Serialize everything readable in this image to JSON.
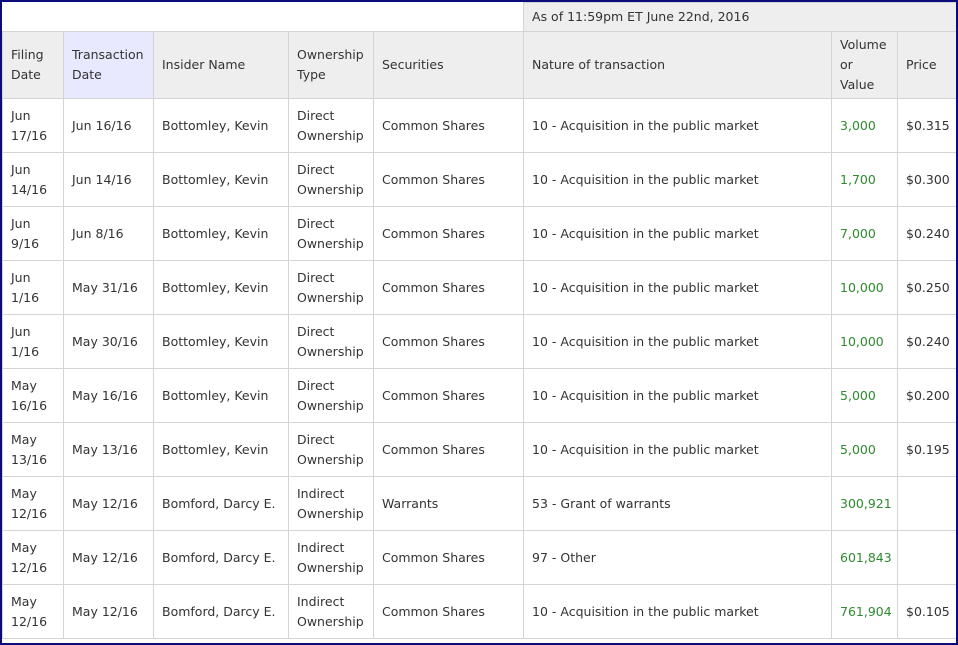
{
  "as_of": "As of 11:59pm ET June 22nd, 2016",
  "headers": [
    "Filing Date",
    "Transaction Date",
    "Insider Name",
    "Ownership Type",
    "Securities",
    "Nature of transaction",
    "Volume or Value",
    "Price"
  ],
  "header_lines": {
    "filing": [
      "Filing",
      "Date"
    ],
    "transaction": [
      "Transaction",
      "Date"
    ],
    "ownership": [
      "Ownership",
      "Type"
    ],
    "volume": [
      "Volume",
      "or",
      "Value"
    ]
  },
  "accent_volume_color": "#2e8b2e",
  "rows": [
    {
      "filing": [
        "Jun",
        "17/16"
      ],
      "transaction": "Jun 16/16",
      "insider": "Bottomley, Kevin",
      "ownership": [
        "Direct",
        "Ownership"
      ],
      "securities": "Common Shares",
      "nature": "10 - Acquisition in the public market",
      "volume": "3,000",
      "price": "$0.315"
    },
    {
      "filing": [
        "Jun",
        "14/16"
      ],
      "transaction": "Jun 14/16",
      "insider": "Bottomley, Kevin",
      "ownership": [
        "Direct",
        "Ownership"
      ],
      "securities": "Common Shares",
      "nature": "10 - Acquisition in the public market",
      "volume": "1,700",
      "price": "$0.300"
    },
    {
      "filing": [
        "Jun",
        "9/16"
      ],
      "transaction": "Jun 8/16",
      "insider": "Bottomley, Kevin",
      "ownership": [
        "Direct",
        "Ownership"
      ],
      "securities": "Common Shares",
      "nature": "10 - Acquisition in the public market",
      "volume": "7,000",
      "price": "$0.240"
    },
    {
      "filing": [
        "Jun",
        "1/16"
      ],
      "transaction": "May 31/16",
      "insider": "Bottomley, Kevin",
      "ownership": [
        "Direct",
        "Ownership"
      ],
      "securities": "Common Shares",
      "nature": "10 - Acquisition in the public market",
      "volume": "10,000",
      "price": "$0.250"
    },
    {
      "filing": [
        "Jun",
        "1/16"
      ],
      "transaction": "May 30/16",
      "insider": "Bottomley, Kevin",
      "ownership": [
        "Direct",
        "Ownership"
      ],
      "securities": "Common Shares",
      "nature": "10 - Acquisition in the public market",
      "volume": "10,000",
      "price": "$0.240"
    },
    {
      "filing": [
        "May",
        "16/16"
      ],
      "transaction": "May 16/16",
      "insider": "Bottomley, Kevin",
      "ownership": [
        "Direct",
        "Ownership"
      ],
      "securities": "Common Shares",
      "nature": "10 - Acquisition in the public market",
      "volume": "5,000",
      "price": "$0.200"
    },
    {
      "filing": [
        "May",
        "13/16"
      ],
      "transaction": "May 13/16",
      "insider": "Bottomley, Kevin",
      "ownership": [
        "Direct",
        "Ownership"
      ],
      "securities": "Common Shares",
      "nature": "10 - Acquisition in the public market",
      "volume": "5,000",
      "price": "$0.195"
    },
    {
      "filing": [
        "May",
        "12/16"
      ],
      "transaction": "May 12/16",
      "insider": "Bomford, Darcy E.",
      "ownership": [
        "Indirect",
        "Ownership"
      ],
      "securities": "Warrants",
      "nature": "53 - Grant of warrants",
      "volume": "300,921",
      "price": ""
    },
    {
      "filing": [
        "May",
        "12/16"
      ],
      "transaction": "May 12/16",
      "insider": "Bomford, Darcy E.",
      "ownership": [
        "Indirect",
        "Ownership"
      ],
      "securities": "Common Shares",
      "nature": "97 - Other",
      "volume": "601,843",
      "price": ""
    },
    {
      "filing": [
        "May",
        "12/16"
      ],
      "transaction": "May 12/16",
      "insider": "Bomford, Darcy E.",
      "ownership": [
        "Indirect",
        "Ownership"
      ],
      "securities": "Common Shares",
      "nature": "10 - Acquisition in the public market",
      "volume": "761,904",
      "price": "$0.105"
    }
  ]
}
